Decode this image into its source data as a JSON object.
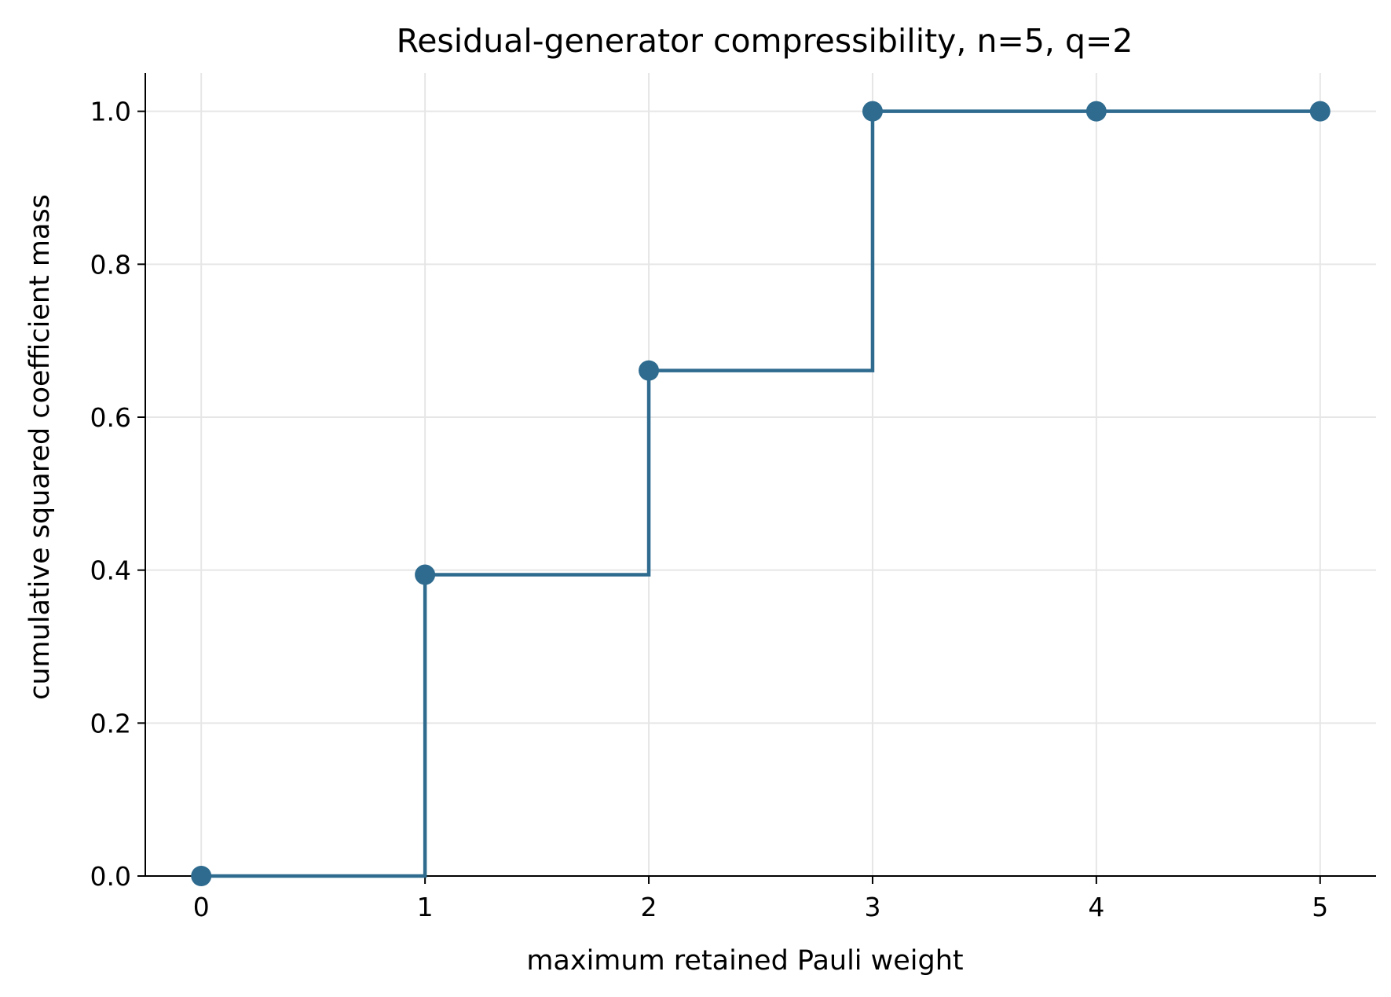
{
  "chart_data": {
    "type": "line",
    "step": "post",
    "title": "Residual-generator compressibility, n=5, q=2",
    "xlabel": "maximum retained Pauli weight",
    "ylabel": "cumulative squared coefficient mass",
    "x": [
      0,
      1,
      2,
      3,
      4,
      5
    ],
    "series": [
      {
        "values": [
          0.0,
          0.394,
          0.661,
          1.0,
          1.0,
          1.0
        ]
      }
    ],
    "xlim": [
      -0.25,
      5.25
    ],
    "ylim": [
      0.0,
      1.05
    ],
    "xticks": [
      0,
      1,
      2,
      3,
      4,
      5
    ],
    "xtick_labels": [
      "0",
      "1",
      "2",
      "3",
      "4",
      "5"
    ],
    "yticks": [
      0.0,
      0.2,
      0.4,
      0.6,
      0.8,
      1.0
    ],
    "ytick_labels": [
      "0.0",
      "0.2",
      "0.4",
      "0.6",
      "0.8",
      "1.0"
    ],
    "grid": true,
    "line_color": "#2e6b8f",
    "grid_color": "#e6e6e6"
  }
}
